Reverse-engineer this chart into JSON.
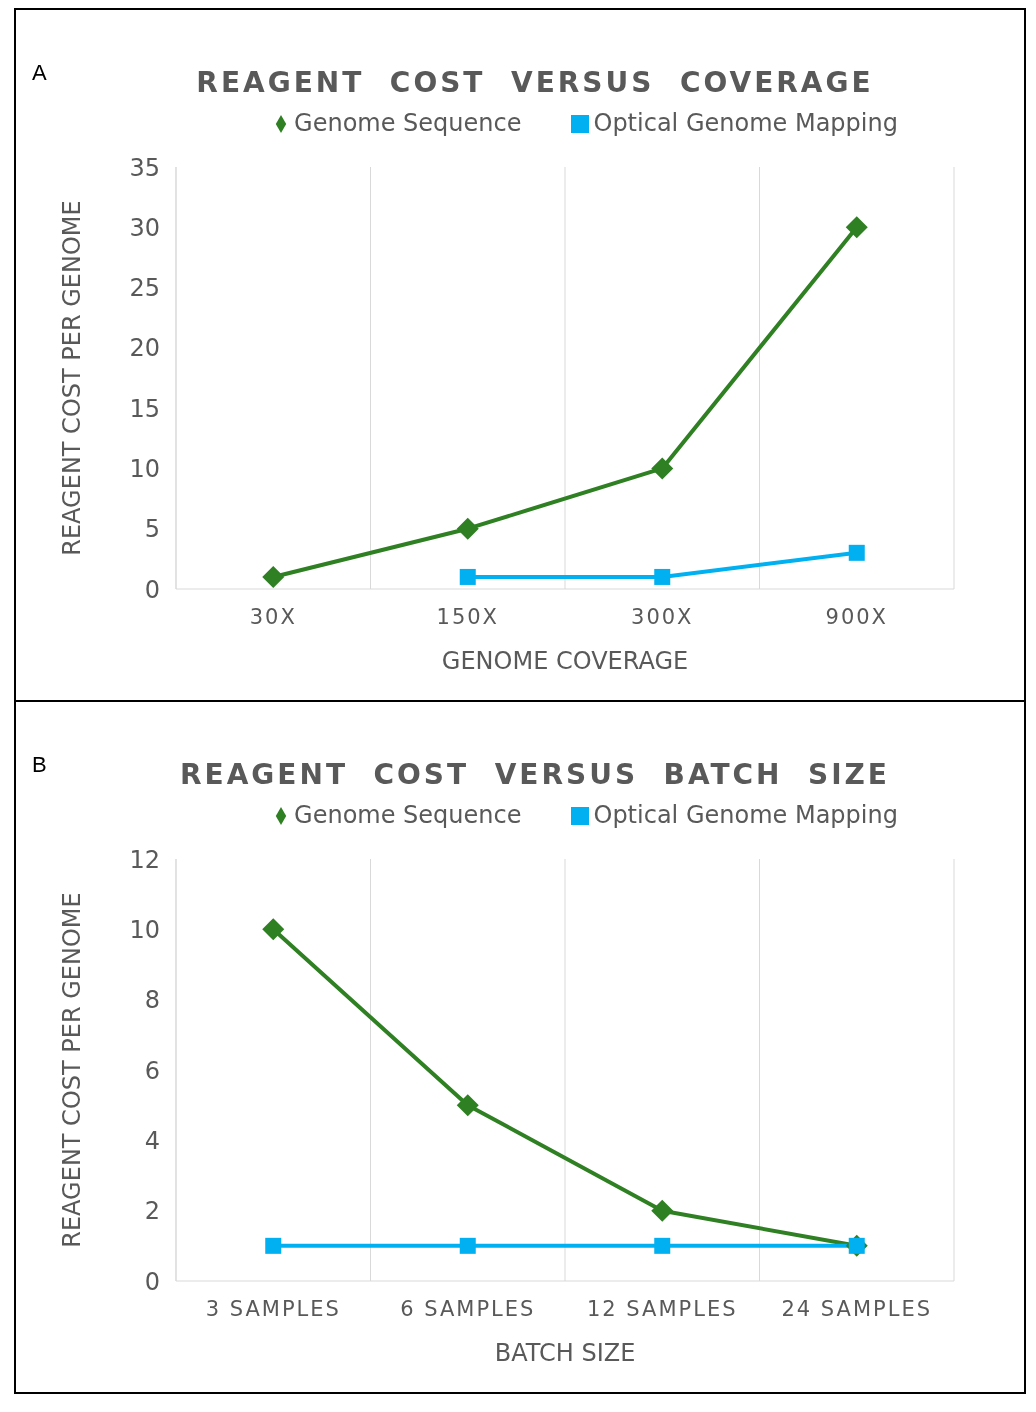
{
  "chart_data": [
    {
      "type": "line",
      "title": "REAGENT  COST  VERSUS  COVERAGE",
      "xlabel": "GENOME COVERAGE",
      "ylabel": "REAGENT COST PER GENOME",
      "annotations": [
        "A"
      ],
      "categories": [
        "30X",
        "150X",
        "300X",
        "900X"
      ],
      "series": [
        {
          "name": "Genome Sequence",
          "color": "#2f7f23",
          "marker": "diamond",
          "values": [
            1,
            5,
            10,
            30
          ]
        },
        {
          "name": "Optical Genome Mapping",
          "color": "#00b0f0",
          "marker": "square",
          "values": [
            null,
            1,
            1,
            3
          ]
        }
      ],
      "ylim": [
        0,
        35
      ],
      "yticks": [
        0,
        5,
        10,
        15,
        20,
        25,
        30,
        35
      ],
      "grid": "x",
      "legend": "top"
    },
    {
      "type": "line",
      "title": "REAGENT  COST  VERSUS  BATCH  SIZE",
      "xlabel": "BATCH SIZE",
      "ylabel": "REAGENT COST PER GENOME",
      "annotations": [
        "B"
      ],
      "categories": [
        "3 SAMPLES",
        "6 SAMPLES",
        "12 SAMPLES",
        "24 SAMPLES"
      ],
      "series": [
        {
          "name": "Genome Sequence",
          "color": "#2f7f23",
          "marker": "diamond",
          "values": [
            10,
            5,
            2,
            1
          ]
        },
        {
          "name": "Optical Genome Mapping",
          "color": "#00b0f0",
          "marker": "square",
          "values": [
            1,
            1,
            1,
            1
          ]
        }
      ],
      "ylim": [
        0,
        12
      ],
      "yticks": [
        0,
        2,
        4,
        6,
        8,
        10,
        12
      ],
      "grid": "x",
      "legend": "top"
    }
  ]
}
